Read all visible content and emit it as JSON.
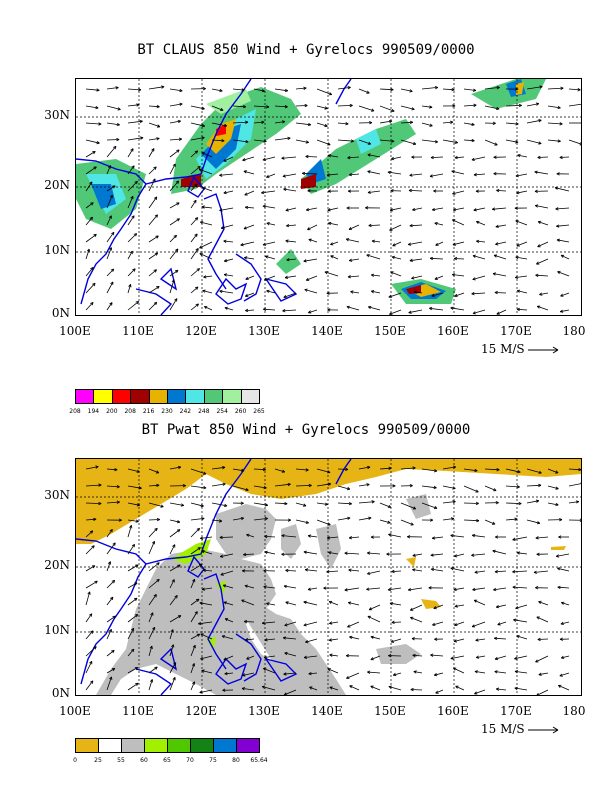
{
  "panels": [
    {
      "title": "BT CLAUS 850 Wind + Gyrelocs 990509/0000",
      "lat_labels": [
        "30N",
        "20N",
        "10N",
        "0N"
      ],
      "lon_labels": [
        "100E",
        "110E",
        "120E",
        "130E",
        "140E",
        "150E",
        "160E",
        "170E",
        "180"
      ],
      "scale_label": "15 M/S",
      "legend": {
        "colors": [
          "#ff00ff",
          "#ffff00",
          "#ff0000",
          "#a00000",
          "#e6b400",
          "#0078d2",
          "#50e6e6",
          "#50c878",
          "#a0f0a0",
          "#e6e6e6"
        ],
        "labels": [
          "208",
          "194",
          "200",
          "208",
          "216",
          "230",
          "242",
          "248",
          "254",
          "260",
          "265"
        ]
      }
    },
    {
      "title": "BT Pwat 850 Wind + Gyrelocs 990509/0000",
      "lat_labels": [
        "30N",
        "20N",
        "10N",
        "0N"
      ],
      "lon_labels": [
        "100E",
        "110E",
        "120E",
        "130E",
        "140E",
        "150E",
        "160E",
        "170E",
        "180"
      ],
      "scale_label": "15 M/S",
      "legend": {
        "colors": [
          "#e6b414",
          "#ffffff",
          "#bebebe",
          "#a0f000",
          "#50c800",
          "#148214",
          "#0078d2",
          "#8200d2"
        ],
        "labels": [
          "0",
          "25",
          "55",
          "60",
          "65",
          "70",
          "75",
          "80",
          "65.64"
        ]
      }
    }
  ]
}
